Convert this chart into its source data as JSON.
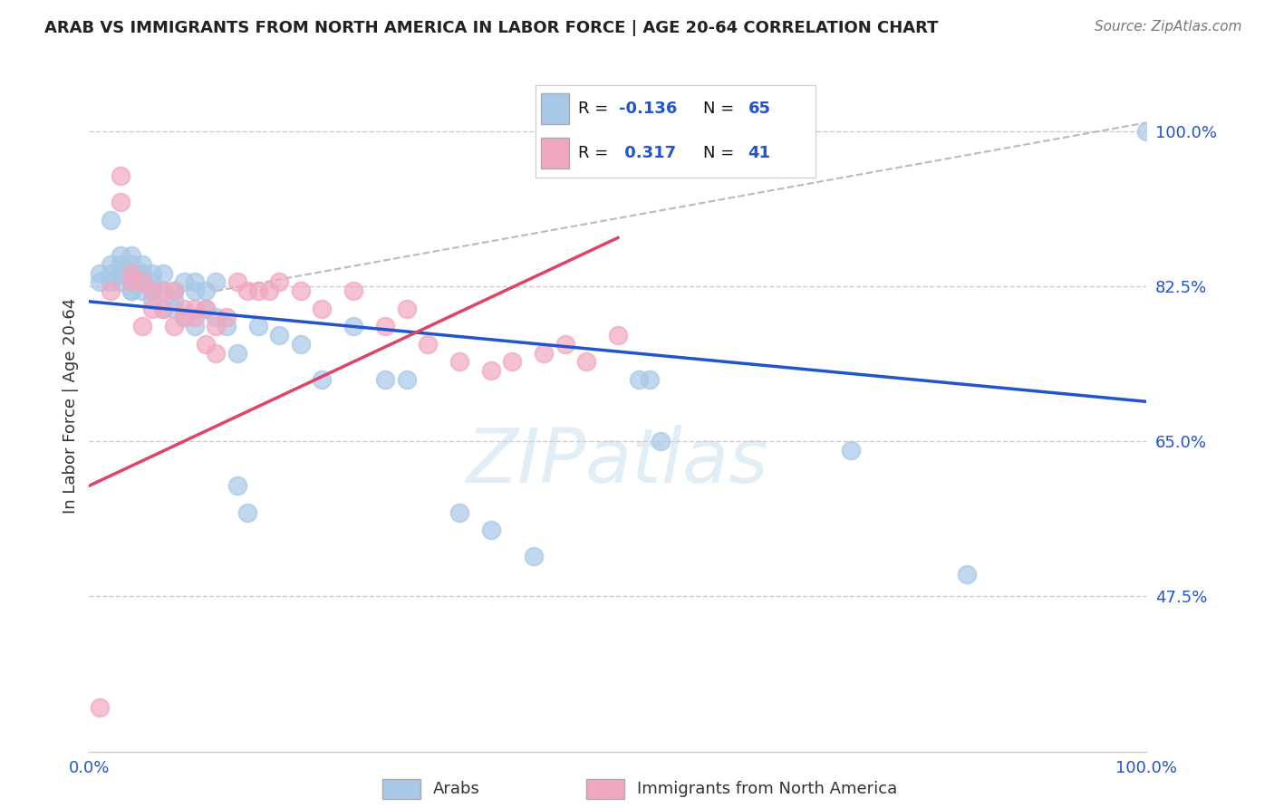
{
  "title": "ARAB VS IMMIGRANTS FROM NORTH AMERICA IN LABOR FORCE | AGE 20-64 CORRELATION CHART",
  "source": "Source: ZipAtlas.com",
  "ylabel": "In Labor Force | Age 20-64",
  "xlim": [
    0.0,
    1.0
  ],
  "ylim": [
    0.3,
    1.08
  ],
  "yticks": [
    0.475,
    0.65,
    0.825,
    1.0
  ],
  "ytick_labels": [
    "47.5%",
    "65.0%",
    "82.5%",
    "100.0%"
  ],
  "xticks": [
    0.0,
    0.2,
    0.4,
    0.6,
    0.8,
    1.0
  ],
  "xtick_labels": [
    "0.0%",
    "",
    "",
    "",
    "",
    "100.0%"
  ],
  "blue_color": "#a8c8e8",
  "pink_color": "#f0a8c0",
  "blue_line_color": "#2255cc",
  "pink_line_color": "#dd4466",
  "ref_line_color": "#bbbbbb",
  "watermark_color": "#d0e4f0",
  "background_color": "#ffffff",
  "grid_color": "#cccccc",
  "blue_scatter_x": [
    0.01,
    0.01,
    0.02,
    0.02,
    0.02,
    0.02,
    0.03,
    0.03,
    0.03,
    0.03,
    0.03,
    0.03,
    0.04,
    0.04,
    0.04,
    0.04,
    0.04,
    0.04,
    0.04,
    0.05,
    0.05,
    0.05,
    0.05,
    0.05,
    0.05,
    0.06,
    0.06,
    0.06,
    0.06,
    0.06,
    0.07,
    0.07,
    0.07,
    0.08,
    0.08,
    0.08,
    0.09,
    0.09,
    0.1,
    0.1,
    0.1,
    0.11,
    0.11,
    0.12,
    0.12,
    0.13,
    0.14,
    0.14,
    0.15,
    0.16,
    0.18,
    0.2,
    0.22,
    0.25,
    0.28,
    0.3,
    0.35,
    0.38,
    0.42,
    0.52,
    0.53,
    0.54,
    0.72,
    0.83,
    1.0
  ],
  "blue_scatter_y": [
    0.84,
    0.83,
    0.85,
    0.84,
    0.83,
    0.9,
    0.86,
    0.85,
    0.84,
    0.83,
    0.84,
    0.84,
    0.86,
    0.85,
    0.84,
    0.83,
    0.82,
    0.82,
    0.83,
    0.85,
    0.84,
    0.83,
    0.82,
    0.84,
    0.83,
    0.84,
    0.83,
    0.82,
    0.81,
    0.82,
    0.84,
    0.82,
    0.8,
    0.82,
    0.81,
    0.8,
    0.83,
    0.79,
    0.83,
    0.82,
    0.78,
    0.82,
    0.8,
    0.83,
    0.79,
    0.78,
    0.6,
    0.75,
    0.57,
    0.78,
    0.77,
    0.76,
    0.72,
    0.78,
    0.72,
    0.72,
    0.57,
    0.55,
    0.52,
    0.72,
    0.72,
    0.65,
    0.64,
    0.5,
    1.0
  ],
  "pink_scatter_x": [
    0.01,
    0.02,
    0.03,
    0.04,
    0.04,
    0.05,
    0.05,
    0.06,
    0.06,
    0.07,
    0.07,
    0.08,
    0.08,
    0.09,
    0.09,
    0.1,
    0.1,
    0.11,
    0.11,
    0.12,
    0.12,
    0.13,
    0.14,
    0.15,
    0.16,
    0.17,
    0.18,
    0.2,
    0.22,
    0.25,
    0.28,
    0.3,
    0.32,
    0.35,
    0.38,
    0.4,
    0.43,
    0.45,
    0.47,
    0.5,
    0.03
  ],
  "pink_scatter_y": [
    0.35,
    0.82,
    0.95,
    0.84,
    0.83,
    0.83,
    0.78,
    0.82,
    0.8,
    0.82,
    0.8,
    0.82,
    0.78,
    0.8,
    0.79,
    0.8,
    0.79,
    0.8,
    0.76,
    0.78,
    0.75,
    0.79,
    0.83,
    0.82,
    0.82,
    0.82,
    0.83,
    0.82,
    0.8,
    0.82,
    0.78,
    0.8,
    0.76,
    0.74,
    0.73,
    0.74,
    0.75,
    0.76,
    0.74,
    0.77,
    0.92
  ],
  "blue_line_x0": 0.0,
  "blue_line_y0": 0.808,
  "blue_line_x1": 1.0,
  "blue_line_y1": 0.695,
  "pink_line_x0": 0.0,
  "pink_line_y0": 0.6,
  "pink_line_x1": 0.5,
  "pink_line_y1": 0.88,
  "ref_line_x0": 0.12,
  "ref_line_y0": 0.82,
  "ref_line_x1": 1.0,
  "ref_line_y1": 1.01
}
